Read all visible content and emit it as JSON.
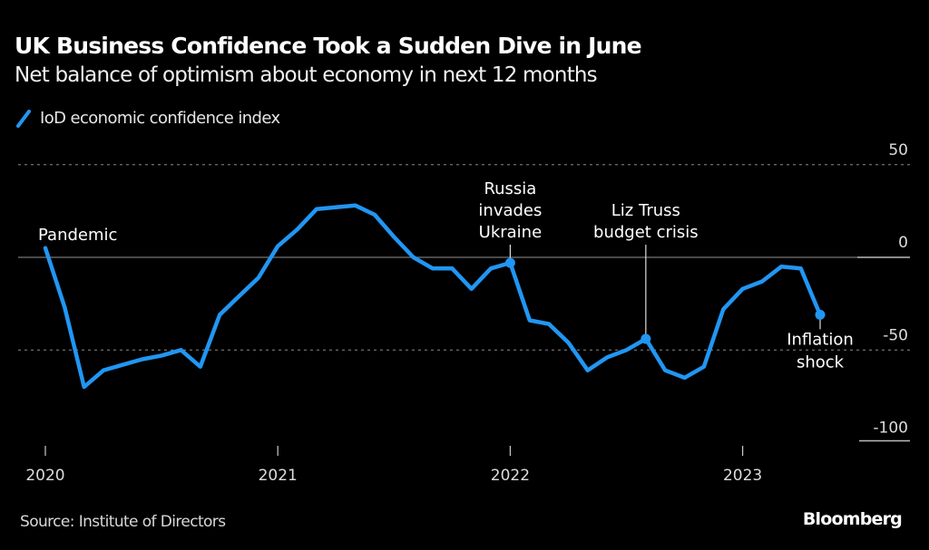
{
  "header": {
    "title": "UK Business Confidence Took a Sudden Dive in June",
    "subtitle": "Net balance of optimism about economy in next 12 months"
  },
  "footer": {
    "source": "Source: Institute of Directors",
    "brand": "Bloomberg"
  },
  "colors": {
    "background": "#000000",
    "series": "#2196f3",
    "text": "#ffffff",
    "grid": "#8a8a8a"
  },
  "chart_data": {
    "type": "line",
    "title": "UK Business Confidence Took a Sudden Dive in June",
    "subtitle": "Net balance of optimism about economy in next 12 months",
    "xlabel": "",
    "ylabel": "",
    "ylim": [
      -100,
      50
    ],
    "yticks": [
      50,
      0,
      -50,
      -100
    ],
    "ytick_labels": [
      "50",
      "0",
      "-50",
      "-100"
    ],
    "xticks": [
      "2020",
      "2021",
      "2022",
      "2023"
    ],
    "grid": true,
    "legend": "top-left",
    "series": [
      {
        "name": "IoD economic confidence index",
        "start": "2020-01",
        "frequency": "monthly",
        "values": [
          5,
          -27,
          -70,
          -61,
          -58,
          -55,
          -53,
          -50,
          -59,
          -31,
          -21,
          -11,
          6,
          15,
          26,
          27,
          28,
          23,
          11,
          0,
          -6,
          -6,
          -17,
          -6,
          -3,
          -34,
          -36,
          -46,
          -61,
          -54,
          -50,
          -44,
          -61,
          -65,
          -59,
          -28,
          -17,
          -13,
          -5,
          -6,
          -31
        ]
      }
    ],
    "annotations": [
      {
        "label": [
          "Pandemic"
        ],
        "index": 0,
        "marker": false
      },
      {
        "label": [
          "Russia",
          "invades",
          "Ukraine"
        ],
        "index": 25,
        "marker": true,
        "on": 24
      },
      {
        "label": [
          "Liz Truss",
          "budget crisis"
        ],
        "index": 32,
        "marker": true,
        "on": 31
      },
      {
        "label": [
          "Inflation",
          "shock"
        ],
        "index": 40,
        "marker": true,
        "on": 40
      }
    ]
  }
}
